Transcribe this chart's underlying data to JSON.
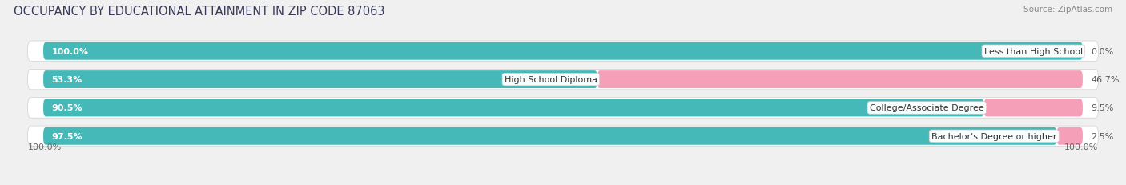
{
  "title": "OCCUPANCY BY EDUCATIONAL ATTAINMENT IN ZIP CODE 87063",
  "source": "Source: ZipAtlas.com",
  "categories": [
    "Less than High School",
    "High School Diploma",
    "College/Associate Degree",
    "Bachelor's Degree or higher"
  ],
  "owner_values": [
    100.0,
    53.3,
    90.5,
    97.5
  ],
  "renter_values": [
    0.0,
    46.7,
    9.5,
    2.5
  ],
  "owner_color": "#45b8b8",
  "renter_color": "#f07090",
  "renter_color_light": "#f5a0b8",
  "background_color": "#f0f0f0",
  "bar_bg_color": "#e0e0e0",
  "row_bg_color": "#e8e8e8",
  "title_fontsize": 10.5,
  "label_fontsize": 8.0,
  "pct_fontsize": 8.0,
  "legend_fontsize": 8.5,
  "source_fontsize": 7.5,
  "axis_label_left": "100.0%",
  "axis_label_right": "100.0%"
}
